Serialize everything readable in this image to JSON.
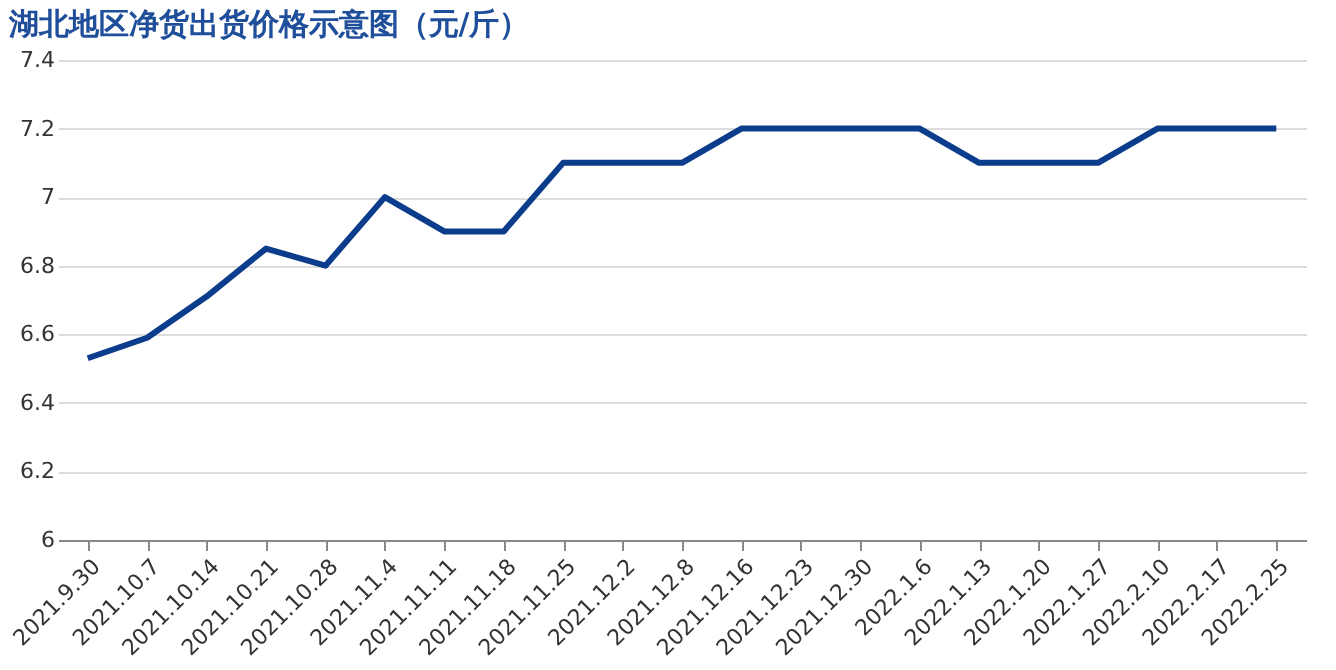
{
  "chart_data": {
    "type": "line",
    "title": "湖北地区净货出货价格示意图（元/斤）",
    "categories": [
      "2021.9.30",
      "2021.10.7",
      "2021.10.14",
      "2021.10.21",
      "2021.10.28",
      "2021.11.4",
      "2021.11.11",
      "2021.11.18",
      "2021.11.25",
      "2021.12.2",
      "2021.12.8",
      "2021.12.16",
      "2021.12.23",
      "2021.12.30",
      "2022.1.6",
      "2022.1.13",
      "2022.1.20",
      "2022.1.27",
      "2022.2.10",
      "2022.2.17",
      "2022.2.25"
    ],
    "series": [
      {
        "color": "#0b3d8c",
        "values": [
          6.53,
          6.59,
          6.71,
          6.85,
          6.8,
          7.0,
          6.9,
          6.9,
          7.1,
          7.1,
          7.1,
          7.2,
          7.2,
          7.2,
          7.2,
          7.1,
          7.1,
          7.1,
          7.2,
          7.2,
          7.2
        ]
      }
    ],
    "ylim": [
      6,
      7.4
    ],
    "yticks": [
      6,
      6.2,
      6.4,
      6.6,
      6.8,
      7,
      7.2,
      7.4
    ],
    "grid": "y",
    "marker": "none",
    "line_style": "solid"
  }
}
